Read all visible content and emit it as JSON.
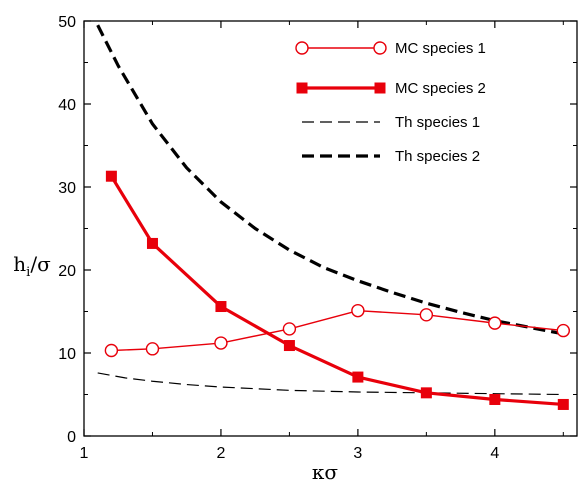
{
  "chart_data": {
    "type": "line",
    "title": "",
    "xlabel": "κσ",
    "ylabel_main": "h",
    "ylabel_sub": "i",
    "ylabel_tail": "/σ",
    "xlim": [
      1,
      4.6
    ],
    "ylim": [
      0,
      50
    ],
    "xticks": [
      1,
      2,
      3,
      4
    ],
    "yticks": [
      0,
      10,
      20,
      30,
      40,
      50
    ],
    "legend_position": "top-right",
    "grid": false,
    "series": [
      {
        "name": "MC species 1",
        "style": "thin-open-circle",
        "color": "#e8000b",
        "x": [
          1.2,
          1.5,
          2.0,
          2.5,
          3.0,
          3.5,
          4.0,
          4.5
        ],
        "y": [
          10.3,
          10.5,
          11.2,
          12.9,
          15.1,
          14.6,
          13.6,
          12.7
        ]
      },
      {
        "name": "MC species 2",
        "style": "thick-filled-square",
        "color": "#e8000b",
        "x": [
          1.2,
          1.5,
          2.0,
          2.5,
          3.0,
          3.5,
          4.0,
          4.5
        ],
        "y": [
          31.3,
          23.2,
          15.6,
          10.9,
          7.1,
          5.2,
          4.4,
          3.8
        ]
      },
      {
        "name": "Th species 1",
        "style": "thin-dash",
        "color": "#000000",
        "x": [
          1.1,
          1.3,
          1.5,
          1.75,
          2.0,
          2.5,
          3.0,
          3.5,
          4.0,
          4.5
        ],
        "y": [
          7.6,
          7.0,
          6.6,
          6.2,
          5.9,
          5.5,
          5.3,
          5.2,
          5.1,
          5.0
        ]
      },
      {
        "name": "Th species 2",
        "style": "thick-dash",
        "color": "#000000",
        "x": [
          1.1,
          1.25,
          1.5,
          1.75,
          2.0,
          2.25,
          2.5,
          2.75,
          3.0,
          3.25,
          3.5,
          3.75,
          4.0,
          4.25,
          4.5
        ],
        "y": [
          49.5,
          44.6,
          37.6,
          32.3,
          28.2,
          25.0,
          22.4,
          20.3,
          18.7,
          17.3,
          16.0,
          14.9,
          13.9,
          13.1,
          12.3
        ]
      }
    ]
  }
}
